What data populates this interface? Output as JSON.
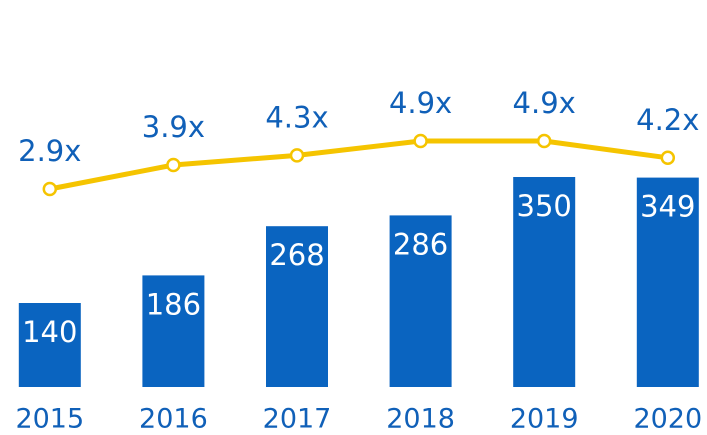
{
  "chart_data": {
    "type": "bar",
    "categories": [
      "2015",
      "2016",
      "2017",
      "2018",
      "2019",
      "2020"
    ],
    "series": [
      {
        "type": "bar",
        "color": "#0a64c0",
        "values": [
          140,
          186,
          268,
          286,
          350,
          349
        ]
      },
      {
        "type": "line",
        "axis": "y2",
        "color": "#f5c400",
        "values": [
          2.9,
          3.9,
          4.3,
          4.9,
          4.9,
          4.2
        ],
        "value_labels": [
          "2.9x",
          "3.9x",
          "4.3x",
          "4.9x",
          "4.9x",
          "4.2x"
        ]
      }
    ],
    "ylim": [
      0,
      600
    ],
    "y2lim": [
      -5.35,
      9.65
    ]
  }
}
